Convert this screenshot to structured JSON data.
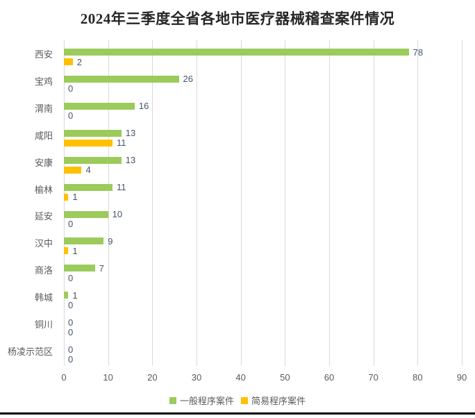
{
  "chart_data": {
    "type": "bar",
    "orientation": "horizontal",
    "title": "2024年三季度全省各地市医疗器械稽查案件情况",
    "categories": [
      "西安",
      "宝鸡",
      "渭南",
      "咸阳",
      "安康",
      "榆林",
      "延安",
      "汉中",
      "商洛",
      "韩城",
      "铜川",
      "杨凌示范区"
    ],
    "series": [
      {
        "name": "一般程序案件",
        "color": "#9bcb5b",
        "values": [
          78,
          26,
          16,
          13,
          13,
          11,
          10,
          9,
          7,
          1,
          0,
          0
        ]
      },
      {
        "name": "简易程序案件",
        "color": "#ffc000",
        "values": [
          2,
          0,
          0,
          11,
          4,
          1,
          0,
          1,
          0,
          0,
          0,
          0
        ]
      }
    ],
    "xlim": [
      0,
      90
    ],
    "x_ticks": [
      0,
      10,
      20,
      30,
      40,
      50,
      60,
      70,
      80,
      90
    ],
    "grid": "vertical-gridlines-on",
    "legend_position": "bottom",
    "data_labels": "shown-at-bar-end"
  },
  "colors": {
    "gridline": "#d9d9d9",
    "axis_text": "#595959",
    "data_label_text": "#44546a",
    "title_text": "#262626",
    "bottom_rule": "#000000",
    "background": "#ffffff"
  }
}
